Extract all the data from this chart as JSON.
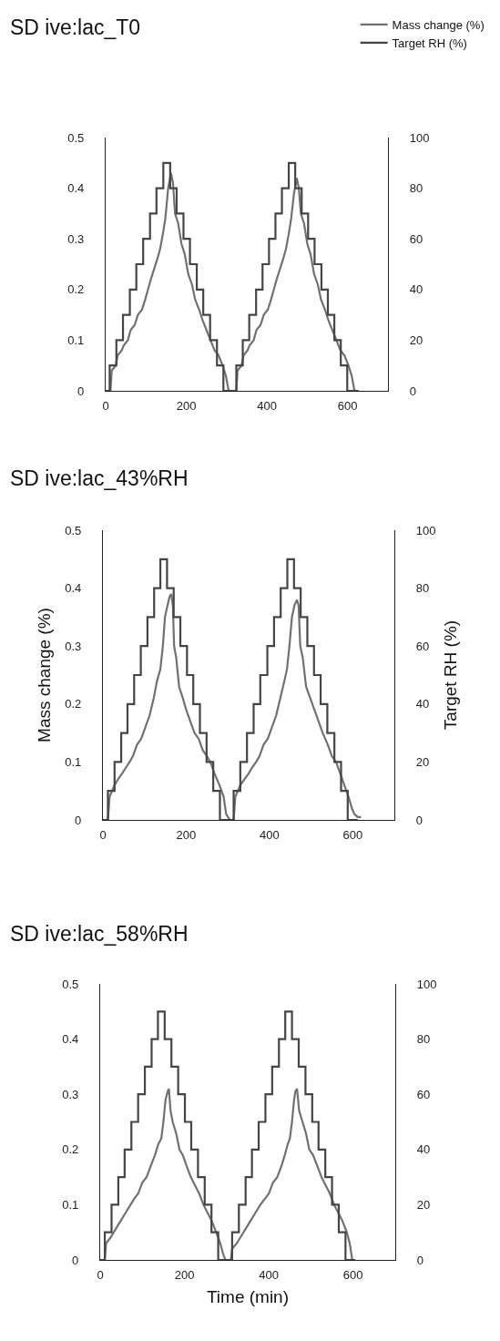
{
  "chart_data": [
    {
      "type": "line",
      "title": "SD ive:lac_T0",
      "legend": "top right",
      "grid": false,
      "xlim": [
        0,
        700
      ],
      "xticks": [
        0,
        200,
        400,
        600
      ],
      "ylim": [
        0,
        0.5
      ],
      "yticks": [
        0,
        0.1,
        0.2,
        0.3,
        0.4,
        0.5
      ],
      "y2lim": [
        0,
        100
      ],
      "y2ticks": [
        0,
        20,
        40,
        60,
        80,
        100
      ],
      "series": [
        {
          "name": "Mass change (%)",
          "color": "#717171",
          "type": "line",
          "x": [
            12,
            15,
            25,
            30,
            40,
            45,
            55,
            62,
            72,
            80,
            90,
            98,
            105,
            112,
            120,
            128,
            135,
            142,
            148,
            155,
            162,
            167,
            172,
            180,
            188,
            196,
            205,
            214,
            222,
            232,
            240,
            250,
            260,
            270,
            280,
            290,
            298,
            305,
            315,
            324,
            327,
            337,
            342,
            352,
            357,
            367,
            374,
            384,
            392,
            402,
            410,
            417,
            424,
            432,
            440,
            447,
            454,
            460,
            467,
            474,
            479,
            484,
            492,
            500,
            508,
            517,
            526,
            534,
            544,
            552,
            562,
            572,
            582,
            592,
            602,
            610,
            617,
            628
          ],
          "values": [
            0,
            0.04,
            0.05,
            0.07,
            0.08,
            0.09,
            0.1,
            0.12,
            0.13,
            0.15,
            0.16,
            0.18,
            0.2,
            0.22,
            0.24,
            0.26,
            0.28,
            0.31,
            0.34,
            0.4,
            0.43,
            0.41,
            0.35,
            0.33,
            0.29,
            0.27,
            0.23,
            0.21,
            0.18,
            0.16,
            0.14,
            0.12,
            0.1,
            0.08,
            0.07,
            0.05,
            0.03,
            0,
            0,
            0,
            0.04,
            0.05,
            0.07,
            0.08,
            0.09,
            0.1,
            0.12,
            0.13,
            0.15,
            0.16,
            0.18,
            0.2,
            0.22,
            0.24,
            0.26,
            0.28,
            0.31,
            0.34,
            0.39,
            0.42,
            0.4,
            0.35,
            0.33,
            0.29,
            0.27,
            0.23,
            0.21,
            0.18,
            0.16,
            0.14,
            0.12,
            0.1,
            0.08,
            0.07,
            0.05,
            0.03,
            0,
            0
          ]
        },
        {
          "name": "Target RH (%)",
          "color": "#454545",
          "type": "step",
          "axis": "y2",
          "x": [
            0,
            10,
            26.6,
            43,
            60,
            76,
            93,
            110,
            126,
            143,
            160,
            176,
            193,
            209,
            226,
            242,
            259,
            276,
            292,
            309,
            324,
            340,
            356,
            373,
            389,
            405,
            421,
            437,
            454,
            470,
            486,
            502,
            518,
            535,
            551,
            567,
            583,
            599,
            615,
            625
          ],
          "values": [
            0,
            10,
            20,
            30,
            40,
            50,
            60,
            70,
            80,
            90,
            80,
            70,
            60,
            50,
            40,
            30,
            20,
            10,
            0,
            0,
            10,
            20,
            30,
            40,
            50,
            60,
            70,
            80,
            90,
            80,
            70,
            60,
            50,
            40,
            30,
            20,
            10,
            0,
            0,
            0
          ]
        }
      ]
    },
    {
      "type": "line",
      "title": "SD ive:lac_43%RH",
      "ylabel": "Mass change (%)",
      "y2label": "Target RH (%)",
      "grid": false,
      "xlim": [
        0,
        700
      ],
      "xticks": [
        0,
        200,
        400,
        600
      ],
      "ylim": [
        0,
        0.5
      ],
      "yticks": [
        0,
        0.1,
        0.2,
        0.3,
        0.4,
        0.5
      ],
      "y2lim": [
        0,
        100
      ],
      "y2ticks": [
        0,
        20,
        40,
        60,
        80,
        100
      ],
      "series": [
        {
          "color": "#717171",
          "type": "line",
          "x": [
            12,
            16,
            28,
            36,
            46,
            55,
            64,
            72,
            82,
            92,
            102,
            112,
            122,
            130,
            138,
            144,
            149,
            155,
            160,
            164,
            168,
            171,
            176,
            183,
            192,
            200,
            210,
            220,
            230,
            240,
            250,
            258,
            268,
            280,
            290,
            296,
            305,
            314,
            318,
            330,
            340,
            350,
            358,
            368,
            376,
            386,
            396,
            406,
            416,
            426,
            436,
            442,
            448,
            454,
            460,
            466,
            470,
            474,
            480,
            488,
            498,
            508,
            518,
            528,
            540,
            550,
            560,
            570,
            580,
            590,
            598,
            604,
            612,
            620
          ],
          "values": [
            0,
            0.04,
            0.06,
            0.07,
            0.08,
            0.09,
            0.1,
            0.11,
            0.13,
            0.14,
            0.16,
            0.18,
            0.21,
            0.24,
            0.26,
            0.3,
            0.35,
            0.37,
            0.385,
            0.39,
            0.37,
            0.3,
            0.28,
            0.23,
            0.21,
            0.19,
            0.17,
            0.15,
            0.14,
            0.12,
            0.11,
            0.1,
            0.08,
            0.06,
            0.04,
            0.01,
            0,
            0,
            0.04,
            0.06,
            0.07,
            0.08,
            0.09,
            0.1,
            0.11,
            0.13,
            0.14,
            0.16,
            0.18,
            0.21,
            0.24,
            0.26,
            0.3,
            0.35,
            0.37,
            0.38,
            0.37,
            0.3,
            0.28,
            0.23,
            0.21,
            0.19,
            0.17,
            0.15,
            0.13,
            0.11,
            0.1,
            0.08,
            0.06,
            0.04,
            0.02,
            0.01,
            0.005,
            0.005
          ]
        },
        {
          "color": "#454545",
          "type": "step",
          "axis": "y2",
          "x": [
            0,
            12,
            28,
            44,
            59,
            75,
            91,
            107,
            123,
            138,
            154,
            170,
            186,
            202,
            217,
            233,
            249,
            265,
            281,
            297,
            314,
            330,
            346,
            362,
            378,
            395,
            411,
            427,
            443,
            459,
            475,
            491,
            507,
            523,
            539,
            556,
            572,
            588,
            604,
            612
          ],
          "values": [
            0,
            10,
            20,
            30,
            40,
            50,
            60,
            70,
            80,
            90,
            80,
            70,
            60,
            50,
            40,
            30,
            20,
            10,
            0,
            0,
            10,
            20,
            30,
            40,
            50,
            60,
            70,
            80,
            90,
            80,
            70,
            60,
            50,
            40,
            30,
            20,
            10,
            0,
            0,
            0
          ]
        }
      ]
    },
    {
      "type": "line",
      "title": "SD ive:lac_58%RH",
      "xlabel": "Time (min)",
      "grid": false,
      "xlim": [
        0,
        700
      ],
      "xticks": [
        0,
        200,
        400,
        600
      ],
      "ylim": [
        0,
        0.5
      ],
      "yticks": [
        0,
        0.1,
        0.2,
        0.3,
        0.4,
        0.5
      ],
      "y2lim": [
        0,
        100
      ],
      "y2ticks": [
        0,
        20,
        40,
        60,
        80,
        100
      ],
      "series": [
        {
          "color": "#717171",
          "type": "line",
          "x": [
            11,
            14,
            24,
            32,
            40,
            48,
            56,
            64,
            72,
            80,
            90,
            100,
            110,
            120,
            130,
            138,
            145,
            150,
            155,
            160,
            163,
            167,
            172,
            180,
            188,
            196,
            205,
            215,
            225,
            235,
            245,
            255,
            265,
            275,
            285,
            292,
            297,
            310,
            313,
            324,
            332,
            340,
            348,
            356,
            364,
            372,
            380,
            390,
            400,
            410,
            420,
            430,
            438,
            445,
            450,
            455,
            460,
            463,
            467,
            472,
            480,
            488,
            496,
            505,
            515,
            525,
            535,
            545,
            555,
            565,
            575,
            585,
            592,
            598
          ],
          "values": [
            0,
            0.03,
            0.04,
            0.05,
            0.06,
            0.07,
            0.08,
            0.09,
            0.1,
            0.11,
            0.12,
            0.14,
            0.15,
            0.17,
            0.19,
            0.21,
            0.22,
            0.25,
            0.29,
            0.305,
            0.31,
            0.27,
            0.25,
            0.23,
            0.2,
            0.19,
            0.17,
            0.15,
            0.135,
            0.12,
            0.1,
            0.085,
            0.07,
            0.05,
            0.03,
            0.01,
            0,
            0,
            0.02,
            0.03,
            0.04,
            0.05,
            0.06,
            0.07,
            0.08,
            0.09,
            0.1,
            0.11,
            0.12,
            0.14,
            0.15,
            0.17,
            0.19,
            0.21,
            0.22,
            0.25,
            0.29,
            0.305,
            0.31,
            0.27,
            0.25,
            0.23,
            0.2,
            0.19,
            0.17,
            0.15,
            0.135,
            0.12,
            0.1,
            0.085,
            0.07,
            0.05,
            0.03,
            0
          ]
        },
        {
          "color": "#454545",
          "type": "step",
          "axis": "y2",
          "x": [
            0,
            11,
            27,
            43,
            58,
            74,
            90,
            106,
            122,
            137,
            153,
            169,
            185,
            201,
            216,
            232,
            248,
            264,
            280,
            296,
            313,
            329,
            345,
            360,
            376,
            392,
            408,
            424,
            439,
            455,
            471,
            487,
            503,
            518,
            534,
            550,
            566,
            582,
            598,
            605
          ],
          "values": [
            0,
            10,
            20,
            30,
            40,
            50,
            60,
            70,
            80,
            90,
            80,
            70,
            60,
            50,
            40,
            30,
            20,
            10,
            0,
            0,
            10,
            20,
            30,
            40,
            50,
            60,
            70,
            80,
            90,
            80,
            70,
            60,
            50,
            40,
            30,
            20,
            10,
            0,
            0,
            0
          ]
        }
      ]
    }
  ]
}
